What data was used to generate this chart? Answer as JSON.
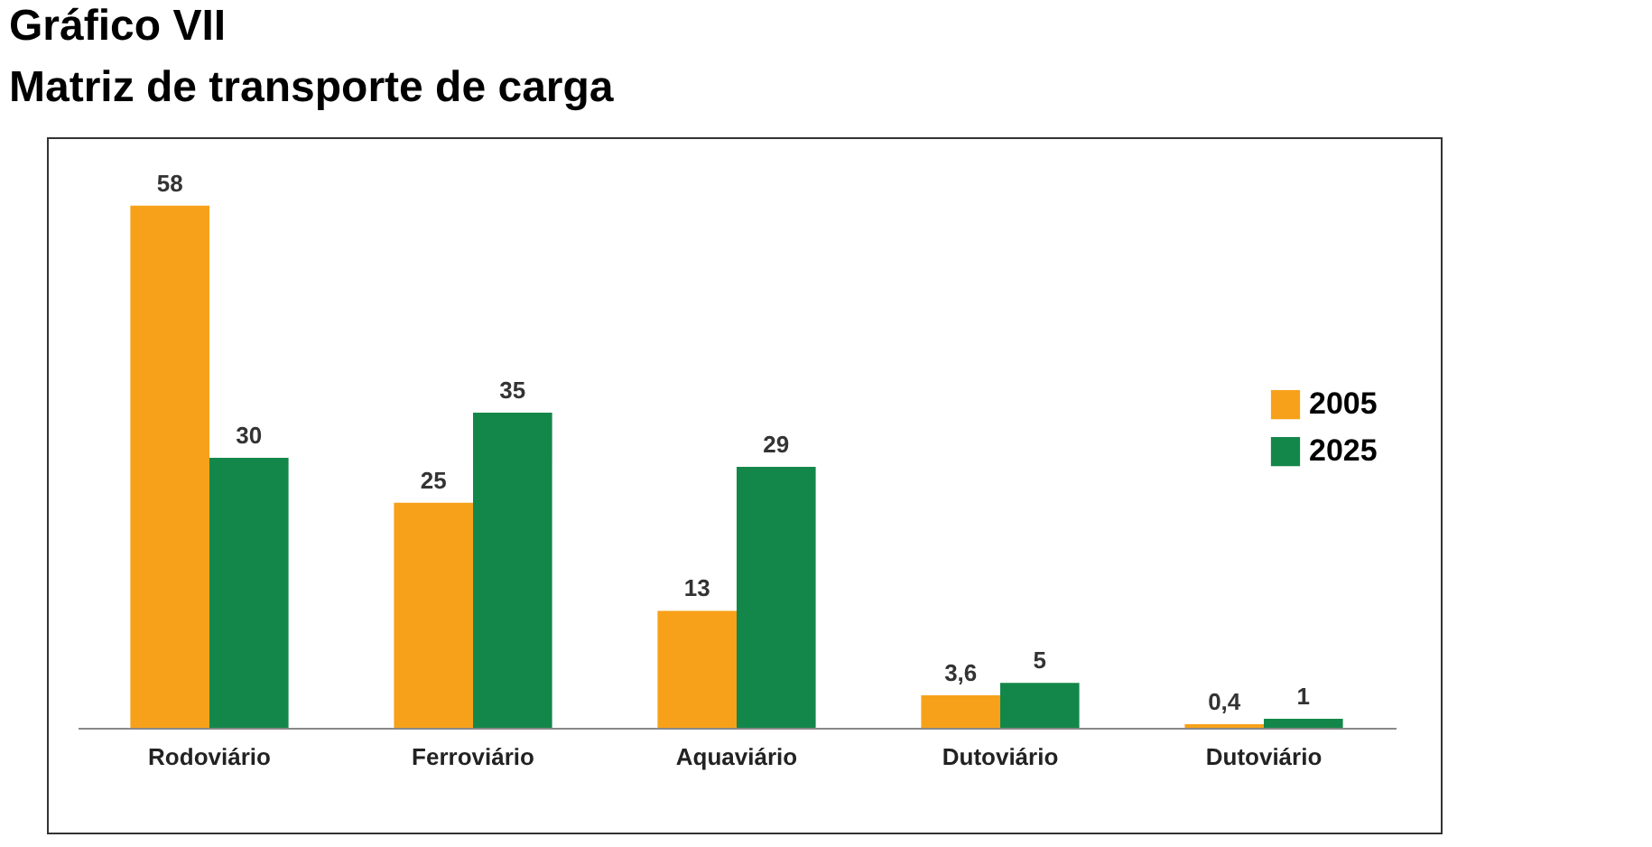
{
  "chart_data": {
    "type": "bar",
    "title": "Gráfico VII",
    "subtitle": "Matriz de transporte de carga",
    "categories": [
      "Rodoviário",
      "Ferroviário",
      "Aquaviário",
      "Dutoviário",
      "Dutoviário"
    ],
    "series": [
      {
        "name": "2005",
        "color": "#f7a11a",
        "values": [
          58,
          25,
          13,
          3.6,
          0.4
        ],
        "value_labels": [
          "58",
          "25",
          "13",
          "3,6",
          "0,4"
        ]
      },
      {
        "name": "2025",
        "color": "#13874a",
        "values": [
          30,
          35,
          29,
          5,
          1
        ],
        "value_labels": [
          "30",
          "35",
          "29",
          "5",
          "1"
        ]
      }
    ],
    "data_labels": true,
    "legend": "right",
    "grid": false,
    "tick_labels": "x"
  }
}
